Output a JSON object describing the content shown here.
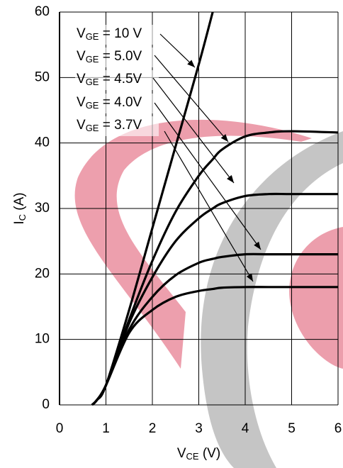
{
  "chart_data": {
    "type": "line",
    "xlabel": "VCE (V)",
    "ylabel": "IC (A)",
    "x": [
      0.7,
      0.8,
      1,
      1.5,
      2,
      2.5,
      3,
      3.3,
      3.5,
      4,
      4.5,
      5,
      6
    ],
    "series": [
      {
        "name": "VGE = 10 V",
        "color": "#000000",
        "values": [
          0,
          0.7,
          3,
          14.5,
          27,
          39.5,
          52,
          60,
          null,
          null,
          null,
          null,
          null
        ]
      },
      {
        "name": "VGE = 5.0V",
        "color": "#000000",
        "values": [
          0,
          0.7,
          3,
          13,
          22,
          29.5,
          35,
          37.5,
          39,
          41,
          41.6,
          41.8,
          41.6
        ]
      },
      {
        "name": "VGE = 4.5V",
        "color": "#000000",
        "values": [
          0,
          0.7,
          3,
          12.5,
          19.5,
          25,
          28.5,
          30,
          30.8,
          31.9,
          32.2,
          32.2,
          32.2
        ]
      },
      {
        "name": "VGE = 4.0V",
        "color": "#000000",
        "values": [
          0,
          0.7,
          3,
          11.5,
          16.5,
          19.8,
          21.7,
          22.3,
          22.6,
          23,
          23,
          23,
          23
        ]
      },
      {
        "name": "VGE = 3.7V",
        "color": "#000000",
        "values": [
          0,
          0.7,
          3,
          11,
          14.5,
          16.5,
          17.4,
          17.7,
          17.9,
          18,
          18,
          18,
          18
        ]
      }
    ],
    "xlim": [
      0,
      6
    ],
    "xticks": [
      0,
      1,
      2,
      3,
      4,
      5,
      6
    ],
    "ylim": [
      0,
      60
    ],
    "yticks": [
      0,
      10,
      20,
      30,
      40,
      50,
      60
    ],
    "grid": true
  }
}
